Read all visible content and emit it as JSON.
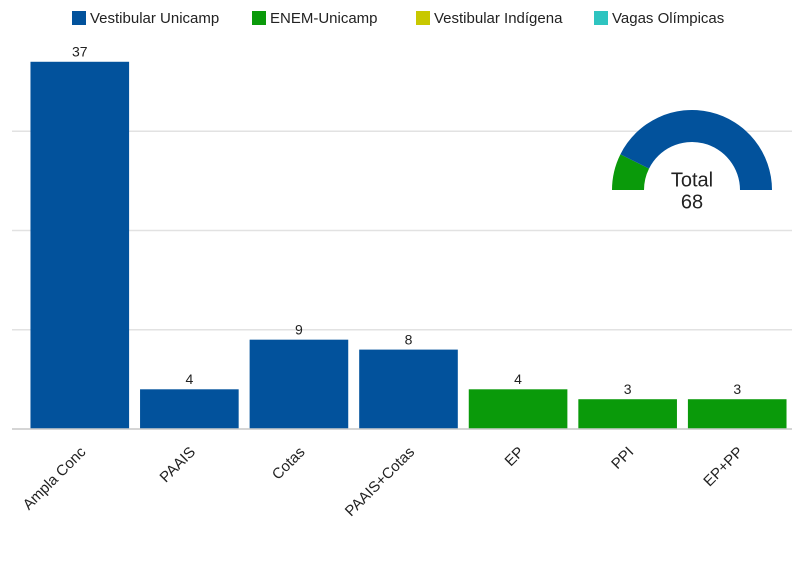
{
  "chart_data": {
    "type": "bar",
    "categories": [
      "Ampla Conc",
      "PAAIS",
      "Cotas",
      "PAAIS+Cotas",
      "EP",
      "PPI",
      "EP+PP"
    ],
    "series": [
      {
        "name": "Vestibular Unicamp",
        "color": "#02529c",
        "values": [
          37,
          4,
          9,
          8,
          null,
          null,
          null
        ]
      },
      {
        "name": "ENEM-Unicamp",
        "color": "#0a9a0a",
        "values": [
          null,
          null,
          null,
          null,
          4,
          3,
          3
        ]
      },
      {
        "name": "Vestibular Indígena",
        "color": "#c8c800",
        "values": [
          null,
          null,
          null,
          null,
          null,
          null,
          null
        ]
      },
      {
        "name": "Vagas Olímpicas",
        "color": "#2ec4c0",
        "values": [
          null,
          null,
          null,
          null,
          null,
          null,
          null
        ]
      }
    ],
    "ylim": [
      0,
      40
    ],
    "yticks": [
      0,
      10,
      20,
      30
    ],
    "grid": true,
    "legend": "top",
    "total": {
      "label": "Total",
      "value": 68
    }
  }
}
